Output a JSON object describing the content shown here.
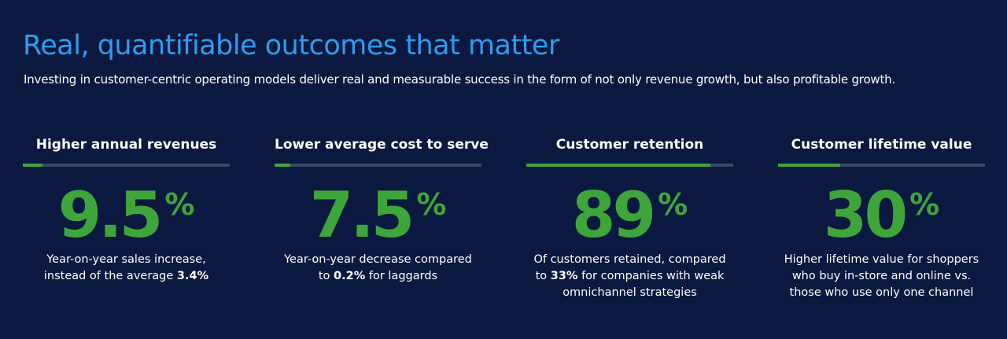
{
  "header": {
    "title": "Real, quantifiable outcomes that matter",
    "subtitle": "Investing in customer-centric operating models deliver real and measurable success in the form of not only revenue growth, but also profitable growth."
  },
  "stats": [
    {
      "title": "Higher annual revenues",
      "value": 9.5,
      "unit": "%",
      "description": [
        {
          "text": "Year-on-year sales increase, instead of the average "
        },
        {
          "text": "3.4%",
          "bold": true
        }
      ]
    },
    {
      "title": "Lower average cost to serve",
      "value": 7.5,
      "unit": "%",
      "description": [
        {
          "text": "Year-on-year decrease compared to "
        },
        {
          "text": "0.2%",
          "bold": true
        },
        {
          "text": " for laggards"
        }
      ]
    },
    {
      "title": "Customer retention",
      "value": 89,
      "unit": "%",
      "description": [
        {
          "text": "Of customers retained, compared to "
        },
        {
          "text": "33%",
          "bold": true
        },
        {
          "text": " for companies with weak omnichannel strategies"
        }
      ]
    },
    {
      "title": "Customer lifetime value",
      "value": 30,
      "unit": "%",
      "description": [
        {
          "text": "Higher lifetime value for shoppers who buy in-store and online vs. those who use only one channel"
        }
      ]
    }
  ]
}
